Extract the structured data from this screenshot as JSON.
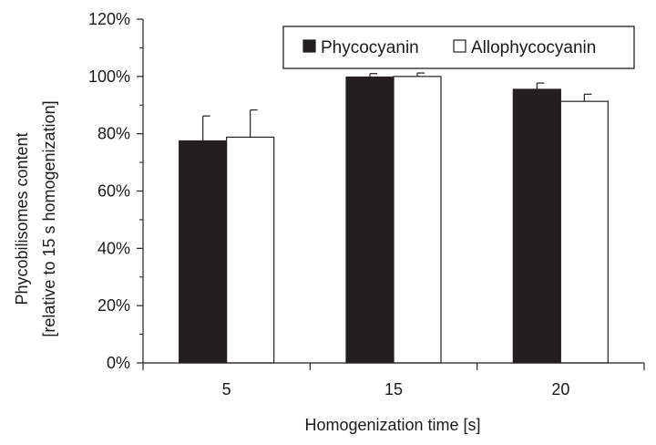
{
  "chart_data": {
    "type": "bar",
    "title": "",
    "xlabel": "Homogenization time [s]",
    "ylabel_lines": [
      "Phycobilisomes content",
      "[relative to 15 s homogenization]"
    ],
    "categories": [
      "5",
      "15",
      "20"
    ],
    "ylim": [
      0,
      1.2
    ],
    "yticks": [
      {
        "value": 0,
        "label": "0%"
      },
      {
        "value": 0.2,
        "label": "20%"
      },
      {
        "value": 0.4,
        "label": "40%"
      },
      {
        "value": 0.6,
        "label": "60%"
      },
      {
        "value": 0.8,
        "label": "80%"
      },
      {
        "value": 1.0,
        "label": "100%"
      },
      {
        "value": 1.2,
        "label": "120%"
      }
    ],
    "series": [
      {
        "name": "Phycocyanin",
        "color": "#231f20",
        "values": [
          0.775,
          0.998,
          0.955
        ],
        "errors": [
          0.087,
          0.012,
          0.022
        ]
      },
      {
        "name": "Allophycocyanin",
        "color": "#ffffff",
        "values": [
          0.788,
          1.0,
          0.913
        ],
        "errors": [
          0.095,
          0.012,
          0.025
        ]
      }
    ],
    "legend": "top-right",
    "grid": false
  }
}
